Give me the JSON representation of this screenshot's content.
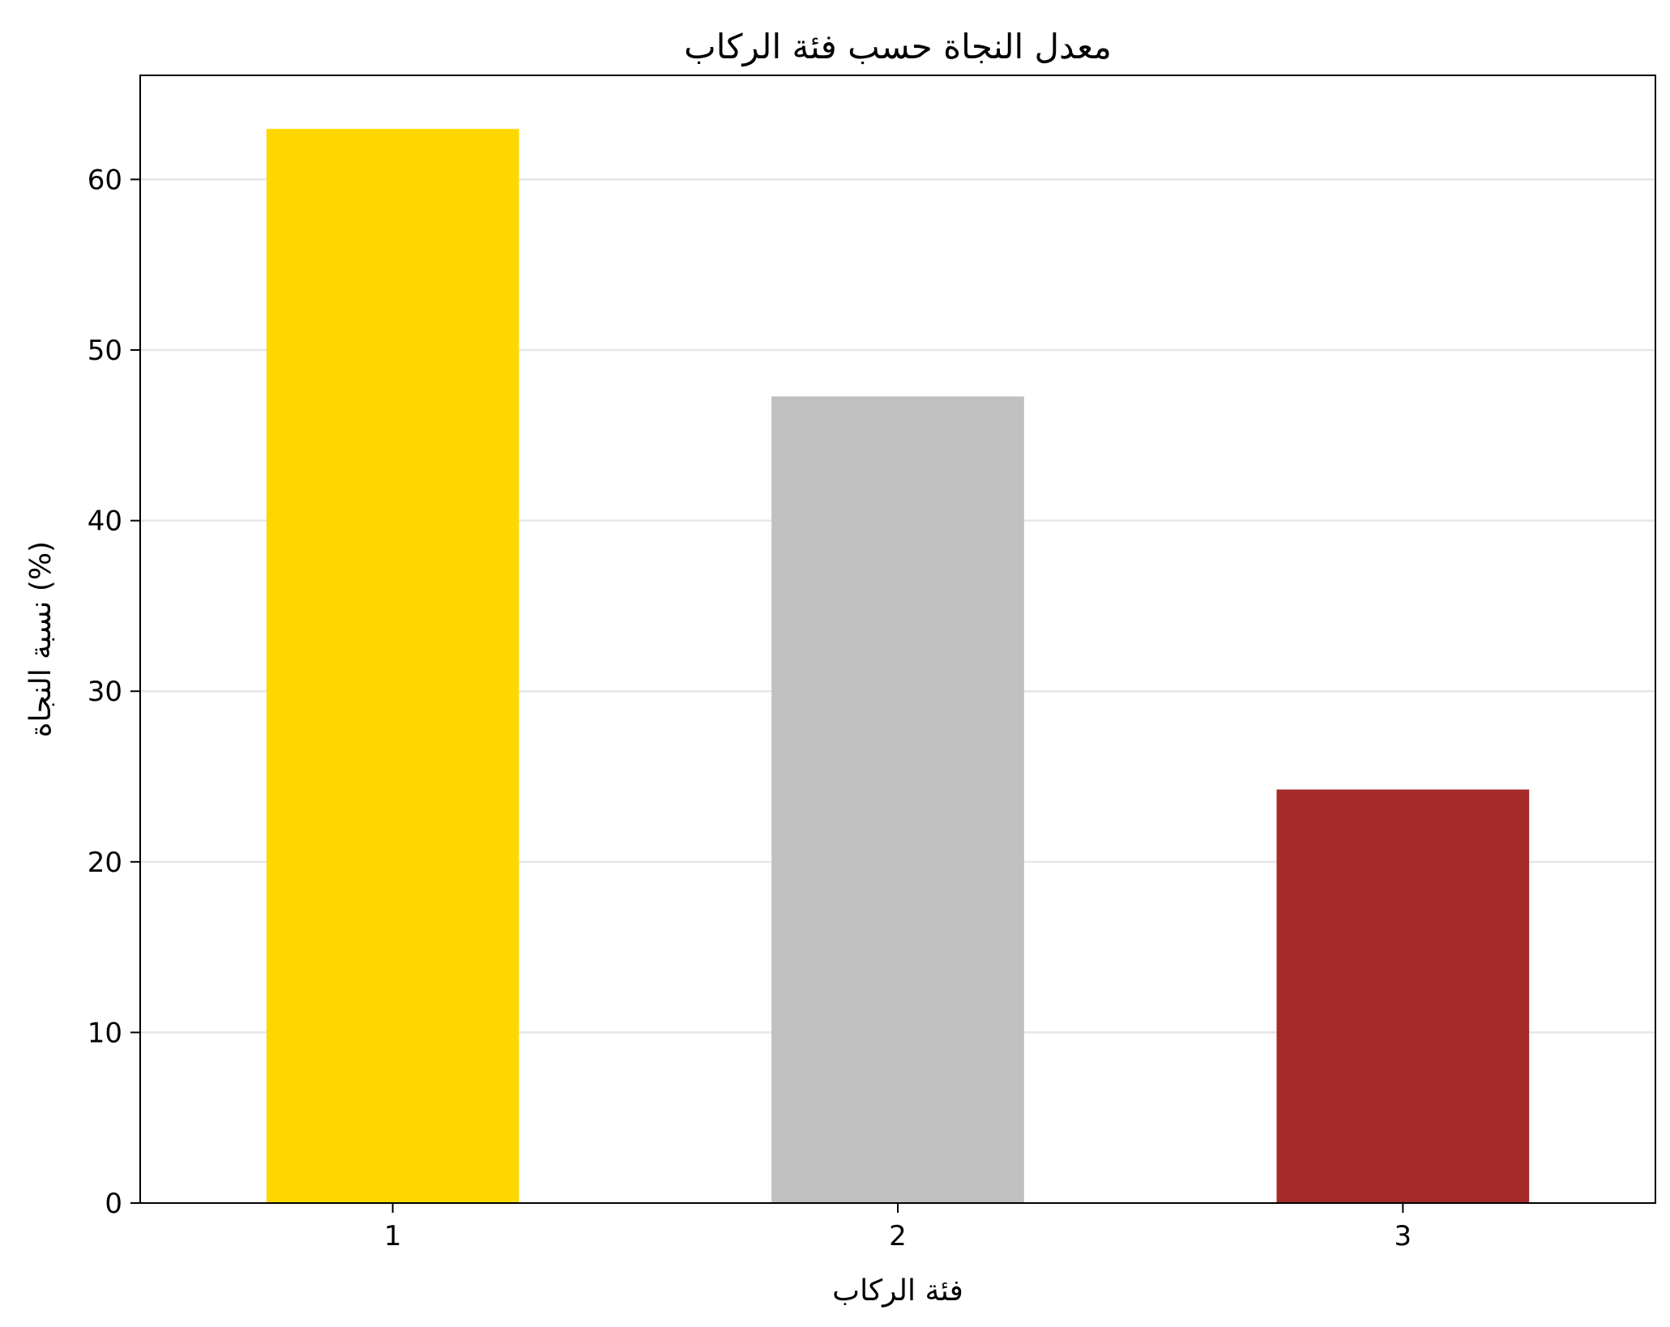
{
  "chart_data": {
    "type": "bar",
    "title": "معدل النجاة حسب فئة الركاب",
    "xlabel": "فئة الركاب",
    "ylabel": "نسبة النجاة (%)",
    "categories": [
      "1",
      "2",
      "3"
    ],
    "values": [
      62.96,
      47.28,
      24.24
    ],
    "colors": [
      "#FFD700",
      "#C0C0C0",
      "#A52A2A"
    ],
    "ylim": [
      0,
      66.1
    ],
    "yticks": [
      0,
      10,
      20,
      30,
      40,
      50,
      60
    ],
    "grid": "y",
    "legend": "none"
  }
}
